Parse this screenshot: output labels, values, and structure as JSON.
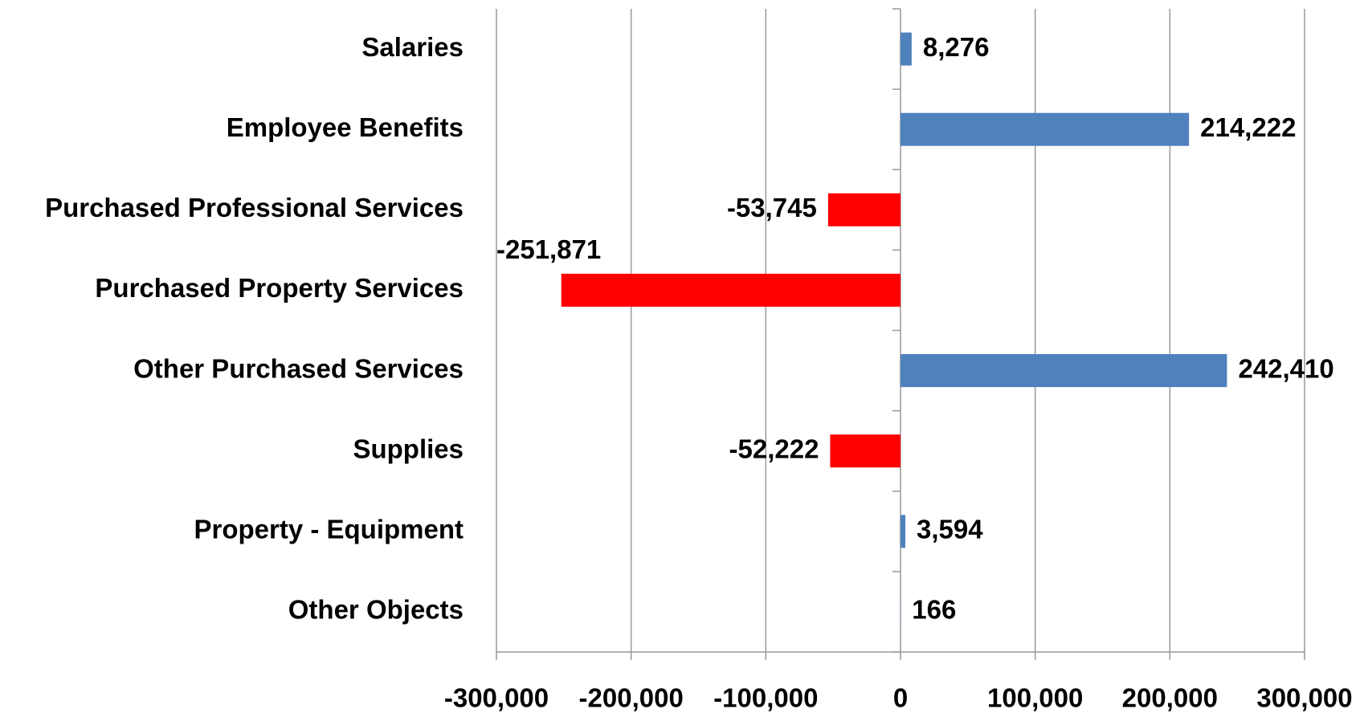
{
  "chart_data": {
    "type": "bar",
    "orientation": "horizontal",
    "categories": [
      "Salaries",
      "Employee Benefits",
      "Purchased Professional Services",
      "Purchased Property Services",
      "Other Purchased Services",
      "Supplies",
      "Property - Equipment",
      "Other Objects"
    ],
    "values": [
      8276,
      214222,
      -53745,
      -251871,
      242410,
      -52222,
      3594,
      166
    ],
    "value_labels": [
      "8,276",
      "214,222",
      "-53,745",
      "-251,871",
      "242,410",
      "-52,222",
      "3,594",
      "166"
    ],
    "color": "#4f81bd",
    "negative_color": "#ff0000",
    "xlim": [
      -300000,
      300000
    ],
    "xticks": [
      {
        "value": -300000,
        "label": "-300,000"
      },
      {
        "value": -200000,
        "label": "-200,000"
      },
      {
        "value": -100000,
        "label": "-100,000"
      },
      0,
      {
        "value": 100000,
        "label": "100,000"
      },
      {
        "value": 200000,
        "label": "200,000"
      },
      {
        "value": 300000,
        "label": "300,000"
      }
    ],
    "grid": true
  }
}
